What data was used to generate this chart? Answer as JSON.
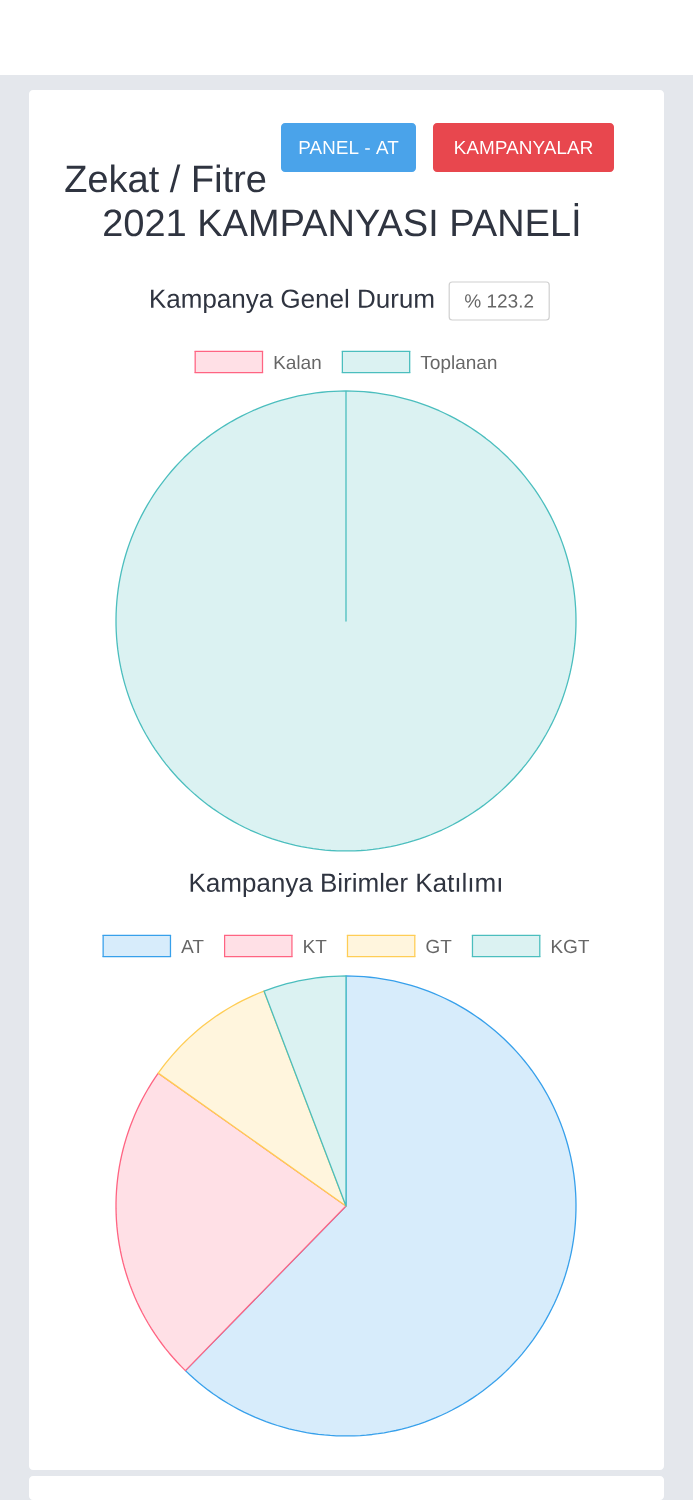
{
  "chart_data": [
    {
      "type": "pie",
      "title": "Kampanya Genel Durum",
      "categories": [
        "Kalan",
        "Toplanan"
      ],
      "values": [
        0,
        100
      ],
      "colors": [
        "#ffe0e6",
        "#dbf2f2"
      ],
      "legend": "top",
      "annotations": [
        "PANEL - AT",
        "KAMPANYALAR",
        "Zekat / Fitre",
        "2021 KAMPANYASI PANELİ",
        "% 123.2"
      ]
    },
    {
      "type": "pie",
      "title": "Kampanya Birimler Katılımı",
      "categories": [
        "AT",
        "KT",
        "GT",
        "KGT"
      ],
      "values": [
        62.3,
        22.5,
        9.4,
        5.8
      ],
      "colors": [
        "#d7ecfb",
        "#ffe0e6",
        "#fff5dd",
        "#dbf2f2"
      ],
      "legend": "top"
    }
  ]
}
